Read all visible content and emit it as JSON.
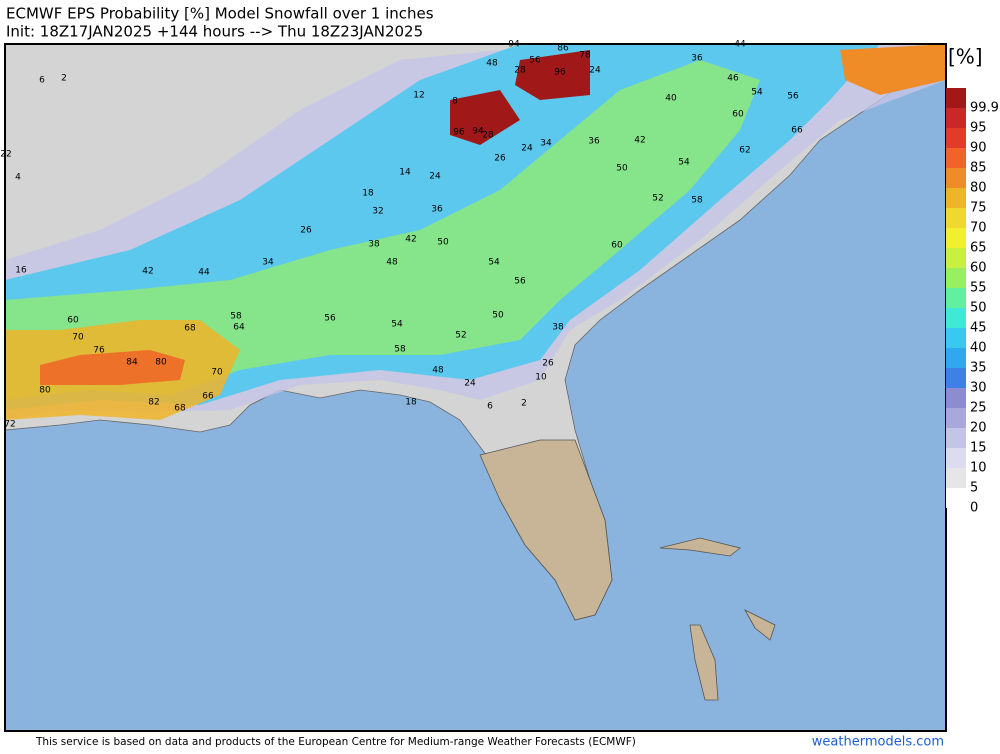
{
  "header": {
    "title": "ECMWF EPS Probability [%] Model Snowfall over 1 inches",
    "subtitle": "Init: 18Z17JAN2025 +144 hours --> Thu 18Z23JAN2025"
  },
  "legend": {
    "unit": "[%]",
    "levels": [
      99.9,
      95,
      90,
      85,
      80,
      75,
      70,
      65,
      60,
      55,
      50,
      45,
      40,
      35,
      30,
      25,
      20,
      15,
      10,
      5,
      0
    ],
    "colors": [
      "#a01818",
      "#c82828",
      "#e03c28",
      "#f06428",
      "#f08c28",
      "#f0b428",
      "#f0d830",
      "#f0f030",
      "#c8f040",
      "#98f060",
      "#60f0a0",
      "#40e8d8",
      "#38c8f0",
      "#30a8f0",
      "#3c80e8",
      "#8c8cd0",
      "#a8a8dc",
      "#c4c4e8",
      "#dcdcf0",
      "#e6e6e6",
      "#ffffff"
    ]
  },
  "map_labels": [
    94,
    86,
    78,
    96,
    96,
    94,
    48,
    56,
    28,
    24,
    36,
    44,
    46,
    54,
    56,
    66,
    60,
    62,
    50,
    52,
    54,
    42,
    40,
    34,
    36,
    26,
    24,
    12,
    14,
    18,
    24,
    32,
    36,
    38,
    42,
    50,
    48,
    54,
    56,
    52,
    50,
    60,
    58,
    26,
    34,
    44,
    42,
    58,
    64,
    68,
    56,
    54,
    58,
    48,
    38,
    26,
    10,
    18,
    24,
    28,
    6,
    2,
    60,
    70,
    76,
    84,
    80,
    82,
    68,
    70,
    66,
    72,
    80,
    16,
    22,
    4,
    6,
    2,
    8
  ],
  "footer": {
    "credit": "This service is based on data and products of the European Centre for Medium-range Weather Forecasts (ECMWF)",
    "site": "weathermodels.com"
  }
}
